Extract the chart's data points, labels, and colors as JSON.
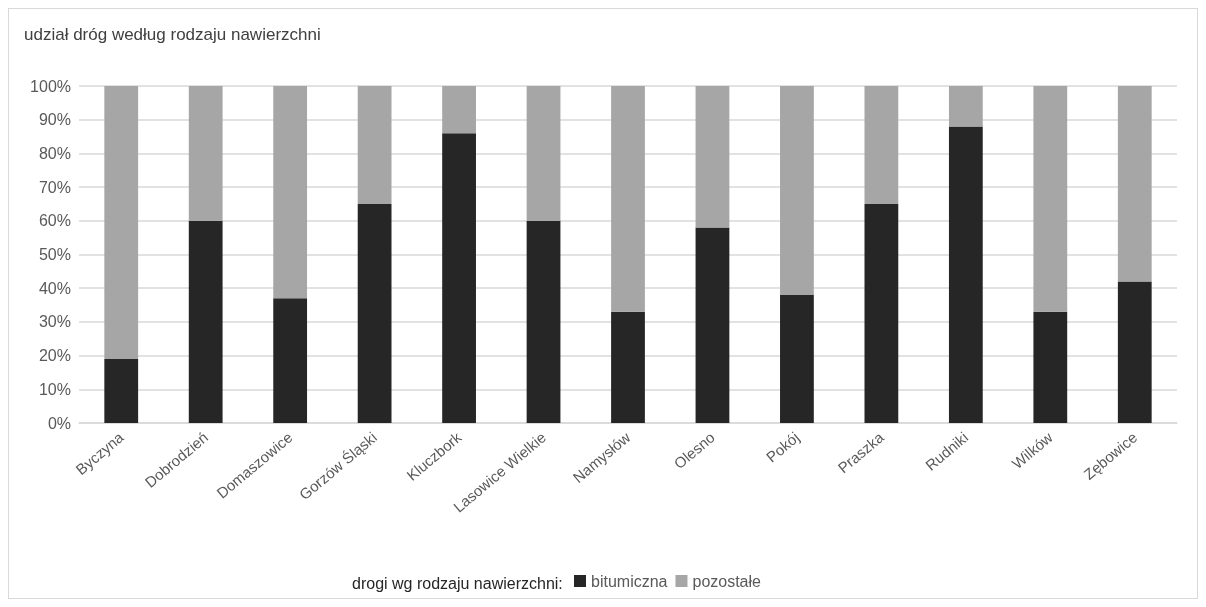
{
  "chart_data": {
    "type": "bar",
    "stacked": true,
    "title": "udział dróg według rodzaju nawierzchni",
    "legend_title": "drogi wg rodzaju nawierzchni:",
    "categories": [
      "Byczyna",
      "Dobrodzień",
      "Domaszowice",
      "Gorzów Śląski",
      "Kluczbork",
      "Lasowice Wielkie",
      "Namysłów",
      "Olesno",
      "Pokój",
      "Praszka",
      "Rudniki",
      "Wilków",
      "Zębowice"
    ],
    "series": [
      {
        "name": "bitumiczna",
        "color": "#262626",
        "values": [
          19,
          60,
          37,
          65,
          86,
          60,
          33,
          58,
          38,
          65,
          88,
          33,
          42
        ]
      },
      {
        "name": "pozostałe",
        "color": "#a6a6a6",
        "values": [
          81,
          40,
          63,
          35,
          14,
          40,
          67,
          42,
          62,
          35,
          12,
          67,
          58
        ]
      }
    ],
    "ylim": [
      0,
      100
    ],
    "yticks": [
      {
        "value": 0,
        "label": "0%"
      },
      {
        "value": 10,
        "label": "10%"
      },
      {
        "value": 20,
        "label": "20%"
      },
      {
        "value": 30,
        "label": "30%"
      },
      {
        "value": 40,
        "label": "40%"
      },
      {
        "value": 50,
        "label": "50%"
      },
      {
        "value": 60,
        "label": "60%"
      },
      {
        "value": 70,
        "label": "70%"
      },
      {
        "value": 80,
        "label": "80%"
      },
      {
        "value": 90,
        "label": "90%"
      },
      {
        "value": 100,
        "label": "100%"
      }
    ],
    "grid": "y",
    "legend": "bottom"
  }
}
